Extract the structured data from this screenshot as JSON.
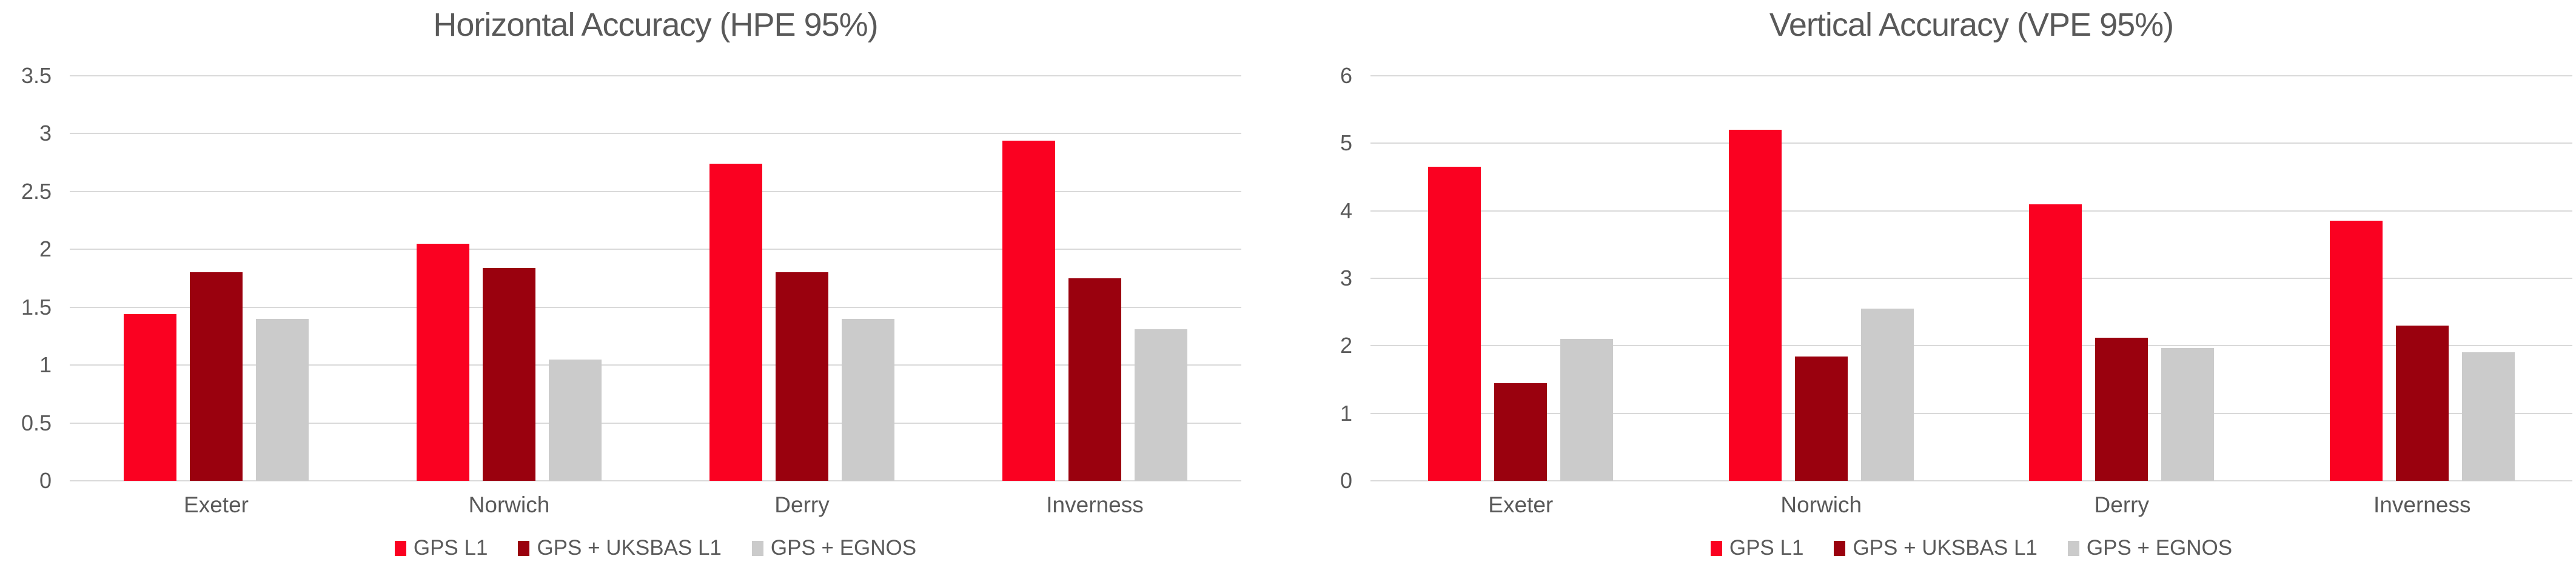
{
  "style": {
    "background": "#FFFFFF",
    "text_color": "#595959",
    "grid_color": "#D9D9D9",
    "series_colors": {
      "gps_l1": "#FA0121",
      "gps_uksbas_l1": "#9A010E",
      "gps_egnos": "#CBCBCB"
    }
  },
  "chart_data": [
    {
      "type": "bar",
      "title": "Horizontal Accuracy (HPE 95%)",
      "categories": [
        "Exeter",
        "Norwich",
        "Derry",
        "Inverness"
      ],
      "series": [
        {
          "name": "GPS L1",
          "color": "#FA0121",
          "values": [
            1.44,
            2.05,
            2.74,
            2.94
          ]
        },
        {
          "name": "GPS + UKSBAS L1",
          "color": "#9A010E",
          "values": [
            1.8,
            1.84,
            1.8,
            1.75
          ]
        },
        {
          "name": "GPS + EGNOS",
          "color": "#CBCBCB",
          "values": [
            1.4,
            1.05,
            1.4,
            1.31
          ]
        }
      ],
      "xlabel": "",
      "ylabel": "",
      "ylim": [
        0,
        3.5
      ],
      "y_ticks": [
        3.5,
        3,
        2.5,
        2,
        1.5,
        1,
        0.5,
        0
      ],
      "y_tick_labels": [
        "3.5",
        "3",
        "2.5",
        "2",
        "1.5",
        "1",
        "0.5",
        "0"
      ],
      "grid": true,
      "legend_position": "bottom"
    },
    {
      "type": "bar",
      "title": "Vertical Accuracy (VPE 95%)",
      "categories": [
        "Exeter",
        "Norwich",
        "Derry",
        "Inverness"
      ],
      "series": [
        {
          "name": "GPS L1",
          "color": "#FA0121",
          "values": [
            4.65,
            5.2,
            4.1,
            3.85
          ]
        },
        {
          "name": "GPS + UKSBAS L1",
          "color": "#9A010E",
          "values": [
            1.45,
            1.84,
            2.12,
            2.3
          ]
        },
        {
          "name": "GPS + EGNOS",
          "color": "#CBCBCB",
          "values": [
            2.1,
            2.55,
            1.97,
            1.9
          ]
        }
      ],
      "xlabel": "",
      "ylabel": "",
      "ylim": [
        0,
        6
      ],
      "y_ticks": [
        6,
        5,
        4,
        3,
        2,
        1,
        0
      ],
      "y_tick_labels": [
        "6",
        "5",
        "4",
        "3",
        "2",
        "1",
        "0"
      ],
      "grid": true,
      "legend_position": "bottom"
    }
  ]
}
